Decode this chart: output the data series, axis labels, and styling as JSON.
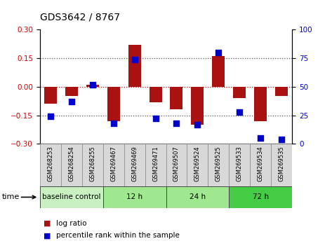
{
  "title": "GDS3642 / 8767",
  "samples": [
    "GSM268253",
    "GSM268254",
    "GSM268255",
    "GSM269467",
    "GSM269469",
    "GSM269471",
    "GSM269507",
    "GSM269524",
    "GSM269525",
    "GSM269533",
    "GSM269534",
    "GSM269535"
  ],
  "log_ratio": [
    -0.09,
    -0.05,
    0.01,
    -0.18,
    0.22,
    -0.08,
    -0.12,
    -0.2,
    0.16,
    -0.06,
    -0.18,
    -0.05
  ],
  "percentile_rank": [
    24,
    37,
    52,
    18,
    74,
    22,
    18,
    17,
    80,
    28,
    5,
    4
  ],
  "ylim": [
    -0.3,
    0.3
  ],
  "y2lim": [
    0,
    100
  ],
  "yticks": [
    -0.3,
    -0.15,
    0,
    0.15,
    0.3
  ],
  "y2ticks": [
    0,
    25,
    50,
    75,
    100
  ],
  "hlines_dotted": [
    -0.15,
    0.15
  ],
  "hline_zero": 0,
  "bar_color": "#aa1111",
  "dot_color": "#0000cc",
  "bar_width": 0.6,
  "dot_size": 30,
  "groups": [
    {
      "label": "baseline control",
      "start": 0,
      "end": 3,
      "color": "#c8f0c0"
    },
    {
      "label": "12 h",
      "start": 3,
      "end": 6,
      "color": "#a0e890"
    },
    {
      "label": "24 h",
      "start": 6,
      "end": 9,
      "color": "#a0e890"
    },
    {
      "label": "72 h",
      "start": 9,
      "end": 12,
      "color": "#44cc44"
    }
  ],
  "sample_box_color": "#d8d8d8",
  "time_label": "time",
  "legend_log_ratio": "log ratio",
  "legend_percentile": "percentile rank within the sample",
  "tick_label_color_left": "#cc0000",
  "tick_label_color_right": "#0000cc",
  "dotted_line_color": "#555555",
  "zero_line_color": "#cc0000",
  "bg_color": "#ffffff"
}
